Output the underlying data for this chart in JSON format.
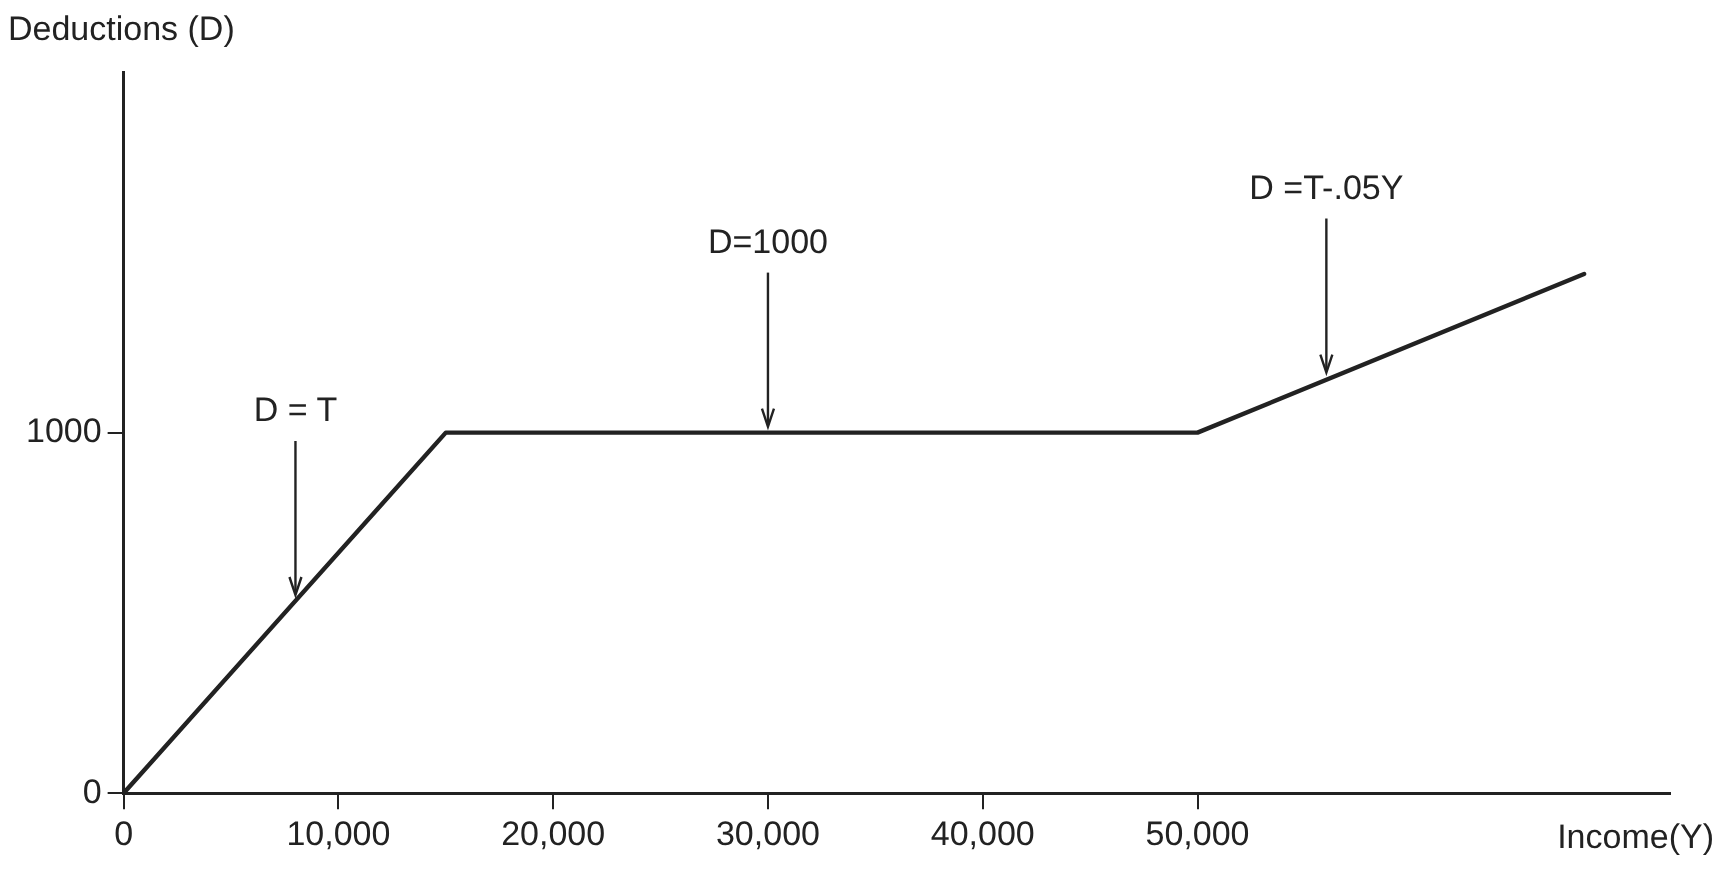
{
  "chart_data": {
    "type": "line",
    "xlabel": "Income(Y)",
    "ylabel": "Deductions (D)",
    "x": [
      0,
      15000,
      50000,
      68000
    ],
    "series": [
      {
        "color": "#222222",
        "values": [
          0,
          1000,
          1000,
          1440
        ]
      }
    ],
    "xlim": [
      0,
      72000
    ],
    "xticks": [
      {
        "value": 0,
        "label": "0"
      },
      {
        "value": 10000,
        "label": "10,000"
      },
      {
        "value": 20000,
        "label": "20,000"
      },
      {
        "value": 30000,
        "label": "30,000"
      },
      {
        "value": 40000,
        "label": "40,000"
      },
      {
        "value": 50000,
        "label": "50,000"
      }
    ],
    "ylim": [
      0,
      2000
    ],
    "yticks": [
      0,
      1000
    ],
    "annotations": [
      {
        "text": "D = T",
        "x": 8000,
        "y": 533
      },
      {
        "text": "D=1000",
        "x": 30000,
        "y": 1000
      },
      {
        "text": "D =T-.05Y",
        "x": 56000,
        "y": 1150
      }
    ],
    "grid": false,
    "legend": false,
    "marker": "none",
    "line_style": "solid"
  }
}
